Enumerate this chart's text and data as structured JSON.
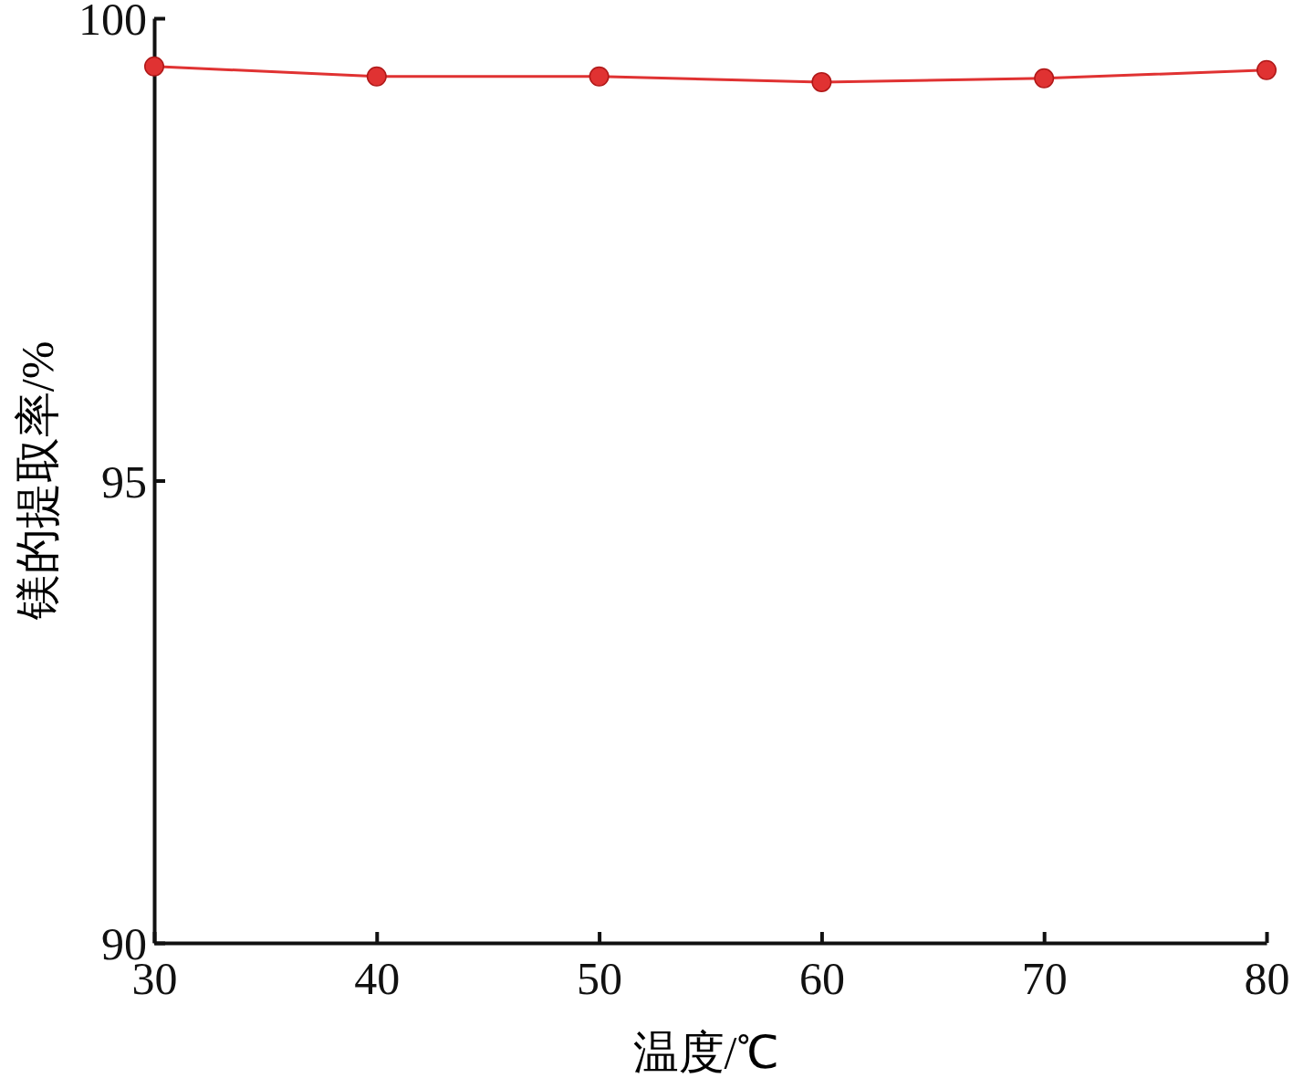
{
  "chart_data": {
    "type": "line",
    "xlabel": "温度/℃",
    "ylabel": "镁的提取率/%",
    "x": [
      30,
      40,
      50,
      60,
      70,
      80
    ],
    "series": [
      {
        "color": "#e03232",
        "values": [
          99.48,
          99.37,
          99.37,
          99.31,
          99.35,
          99.44
        ]
      }
    ],
    "xlim": [
      30,
      80
    ],
    "xticks": [
      30,
      40,
      50,
      60,
      70,
      80
    ],
    "ylim": [
      90,
      100
    ],
    "yticks": [
      90,
      95,
      100
    ],
    "marker": "circle",
    "line_style": "solid",
    "grid": false
  }
}
